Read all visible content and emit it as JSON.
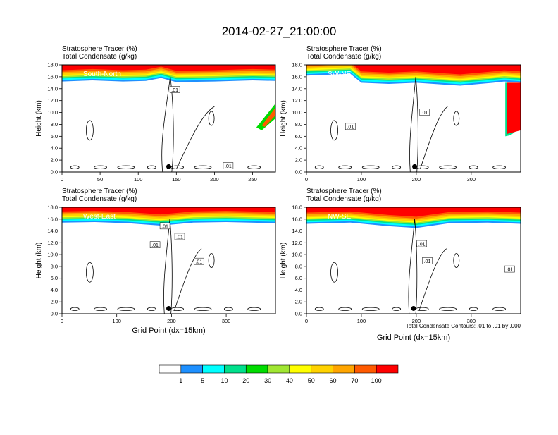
{
  "title": "2014-02-27_21:00:00",
  "panel_subtitle_1": "Stratosphere Tracer   (%)",
  "panel_subtitle_2": "Total Condensate   (g/kg)",
  "ylabel": "Height (km)",
  "xlabel": "Grid Point (dx=15km)",
  "contour_note": "Total Condensate Contours: .01 to .01 by .000",
  "contour_label": ".01",
  "colors": {
    "levels": [
      "#ffffff",
      "#1e90ff",
      "#00ffff",
      "#00e08c",
      "#00dc00",
      "#a0e632",
      "#ffff00",
      "#ffd200",
      "#ffa500",
      "#ff5a00",
      "#ff0000"
    ],
    "colorbar_labels": [
      "1",
      "5",
      "10",
      "20",
      "30",
      "40",
      "50",
      "60",
      "70",
      "100"
    ]
  },
  "chart_data": [
    {
      "type": "heatmap",
      "region": "South-North",
      "ylim": [
        0,
        18
      ],
      "yticks": [
        "0.0",
        "2.0",
        "4.0",
        "6.0",
        "8.0",
        "10.0",
        "12.0",
        "14.0",
        "16.0",
        "18.0"
      ],
      "xlim": [
        0,
        280
      ],
      "xticks": [
        "0",
        "50",
        "100",
        "150",
        "200",
        "250"
      ],
      "xtick_values": [
        0,
        50,
        100,
        150,
        200,
        250
      ],
      "marker_x": 140,
      "tropopause_km": [
        [
          0,
          15.2
        ],
        [
          40,
          15.4
        ],
        [
          80,
          15.2
        ],
        [
          110,
          15.3
        ],
        [
          130,
          15.8
        ],
        [
          150,
          15.1
        ],
        [
          200,
          15.2
        ],
        [
          250,
          15.4
        ],
        [
          280,
          15.3
        ]
      ],
      "contour_labels_at": [
        [
          148,
          13.8
        ],
        [
          218,
          1.0
        ]
      ]
    },
    {
      "type": "heatmap",
      "region": "SW-NE",
      "ylim": [
        0,
        18
      ],
      "yticks": [
        "0.0",
        "2.0",
        "4.0",
        "6.0",
        "8.0",
        "10.0",
        "12.0",
        "14.0",
        "16.0",
        "18.0"
      ],
      "xlim": [
        0,
        390
      ],
      "xticks": [
        "0",
        "100",
        "200",
        "300"
      ],
      "xtick_values": [
        0,
        100,
        200,
        300
      ],
      "marker_x": 197,
      "tropopause_km": [
        [
          0,
          16.2
        ],
        [
          80,
          16.5
        ],
        [
          100,
          15.0
        ],
        [
          150,
          14.8
        ],
        [
          200,
          15.0
        ],
        [
          280,
          14.5
        ],
        [
          340,
          15.0
        ],
        [
          360,
          15.2
        ],
        [
          390,
          15.0
        ]
      ],
      "contour_labels_at": [
        [
          215,
          10.0
        ],
        [
          80,
          7.6
        ]
      ]
    },
    {
      "type": "heatmap",
      "region": "West-East",
      "ylim": [
        0,
        18
      ],
      "yticks": [
        "0.0",
        "2.0",
        "4.0",
        "6.0",
        "8.0",
        "10.0",
        "12.0",
        "14.0",
        "16.0",
        "18.0"
      ],
      "xlim": [
        0,
        390
      ],
      "xticks": [
        "0",
        "100",
        "200",
        "300"
      ],
      "xtick_values": [
        0,
        100,
        200,
        300
      ],
      "marker_x": 195,
      "tropopause_km": [
        [
          0,
          15.4
        ],
        [
          60,
          15.5
        ],
        [
          120,
          15.3
        ],
        [
          180,
          14.9
        ],
        [
          240,
          15.4
        ],
        [
          300,
          15.5
        ],
        [
          390,
          15.3
        ]
      ],
      "contour_labels_at": [
        [
          188,
          14.8
        ],
        [
          215,
          13.0
        ],
        [
          170,
          11.6
        ],
        [
          250,
          8.8
        ]
      ]
    },
    {
      "type": "heatmap",
      "region": "NW-SE",
      "ylim": [
        0,
        18
      ],
      "yticks": [
        "0.0",
        "2.0",
        "4.0",
        "6.0",
        "8.0",
        "10.0",
        "12.0",
        "14.0",
        "16.0",
        "18.0"
      ],
      "xlim": [
        0,
        390
      ],
      "xticks": [
        "0",
        "100",
        "200",
        "300"
      ],
      "xtick_values": [
        0,
        100,
        200,
        300
      ],
      "marker_x": 195,
      "tropopause_km": [
        [
          0,
          15.2
        ],
        [
          80,
          15.4
        ],
        [
          150,
          14.8
        ],
        [
          200,
          14.5
        ],
        [
          260,
          15.3
        ],
        [
          330,
          15.4
        ],
        [
          390,
          15.2
        ]
      ],
      "contour_labels_at": [
        [
          210,
          11.8
        ],
        [
          220,
          8.9
        ],
        [
          370,
          7.5
        ]
      ]
    }
  ]
}
